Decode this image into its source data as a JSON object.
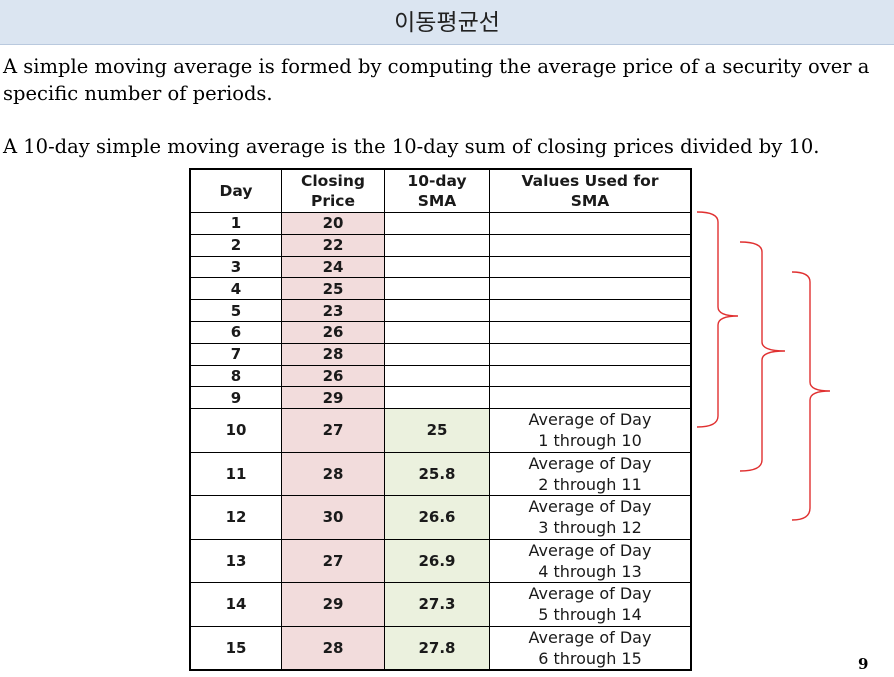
{
  "header": {
    "title": "이동평균선"
  },
  "body": {
    "paragraph_1": "A simple moving average is formed by computing the average price of a security over a specific number of periods.",
    "paragraph_2": "A 10-day simple moving average is the 10-day sum of closing prices divided by 10."
  },
  "table": {
    "headers": {
      "day": "Day",
      "closing_price_line1": "Closing",
      "closing_price_line2": "Price",
      "sma_line1": "10-day",
      "sma_line2": "SMA",
      "values_line1": "Values Used for",
      "values_line2": "SMA"
    },
    "rows": [
      {
        "day": "1",
        "price": "20",
        "sma": "",
        "values_line1": "",
        "values_line2": ""
      },
      {
        "day": "2",
        "price": "22",
        "sma": "",
        "values_line1": "",
        "values_line2": ""
      },
      {
        "day": "3",
        "price": "24",
        "sma": "",
        "values_line1": "",
        "values_line2": ""
      },
      {
        "day": "4",
        "price": "25",
        "sma": "",
        "values_line1": "",
        "values_line2": ""
      },
      {
        "day": "5",
        "price": "23",
        "sma": "",
        "values_line1": "",
        "values_line2": ""
      },
      {
        "day": "6",
        "price": "26",
        "sma": "",
        "values_line1": "",
        "values_line2": ""
      },
      {
        "day": "7",
        "price": "28",
        "sma": "",
        "values_line1": "",
        "values_line2": ""
      },
      {
        "day": "8",
        "price": "26",
        "sma": "",
        "values_line1": "",
        "values_line2": ""
      },
      {
        "day": "9",
        "price": "29",
        "sma": "",
        "values_line1": "",
        "values_line2": ""
      },
      {
        "day": "10",
        "price": "27",
        "sma": "25",
        "values_line1": "Average of Day",
        "values_line2": "1 through 10"
      },
      {
        "day": "11",
        "price": "28",
        "sma": "25.8",
        "values_line1": "Average of Day",
        "values_line2": "2 through 11"
      },
      {
        "day": "12",
        "price": "30",
        "sma": "26.6",
        "values_line1": "Average of Day",
        "values_line2": "3 through 12"
      },
      {
        "day": "13",
        "price": "27",
        "sma": "26.9",
        "values_line1": "Average of Day",
        "values_line2": "4 through 13"
      },
      {
        "day": "14",
        "price": "29",
        "sma": "27.3",
        "values_line1": "Average of Day",
        "values_line2": "5 through 14"
      },
      {
        "day": "15",
        "price": "28",
        "sma": "27.8",
        "values_line1": "Average of Day",
        "values_line2": "6 through 15"
      }
    ]
  },
  "colors": {
    "title_bar": "#dbe5f1",
    "price_cell": "#f2dcdc",
    "sma_cell": "#ebf1de",
    "bracket_stroke": "#e03030"
  },
  "annotations": {
    "brackets": "three red right-curly-braces spanning days 1-10, 2-11 and 3-12"
  },
  "footer": {
    "page_number": "9"
  }
}
